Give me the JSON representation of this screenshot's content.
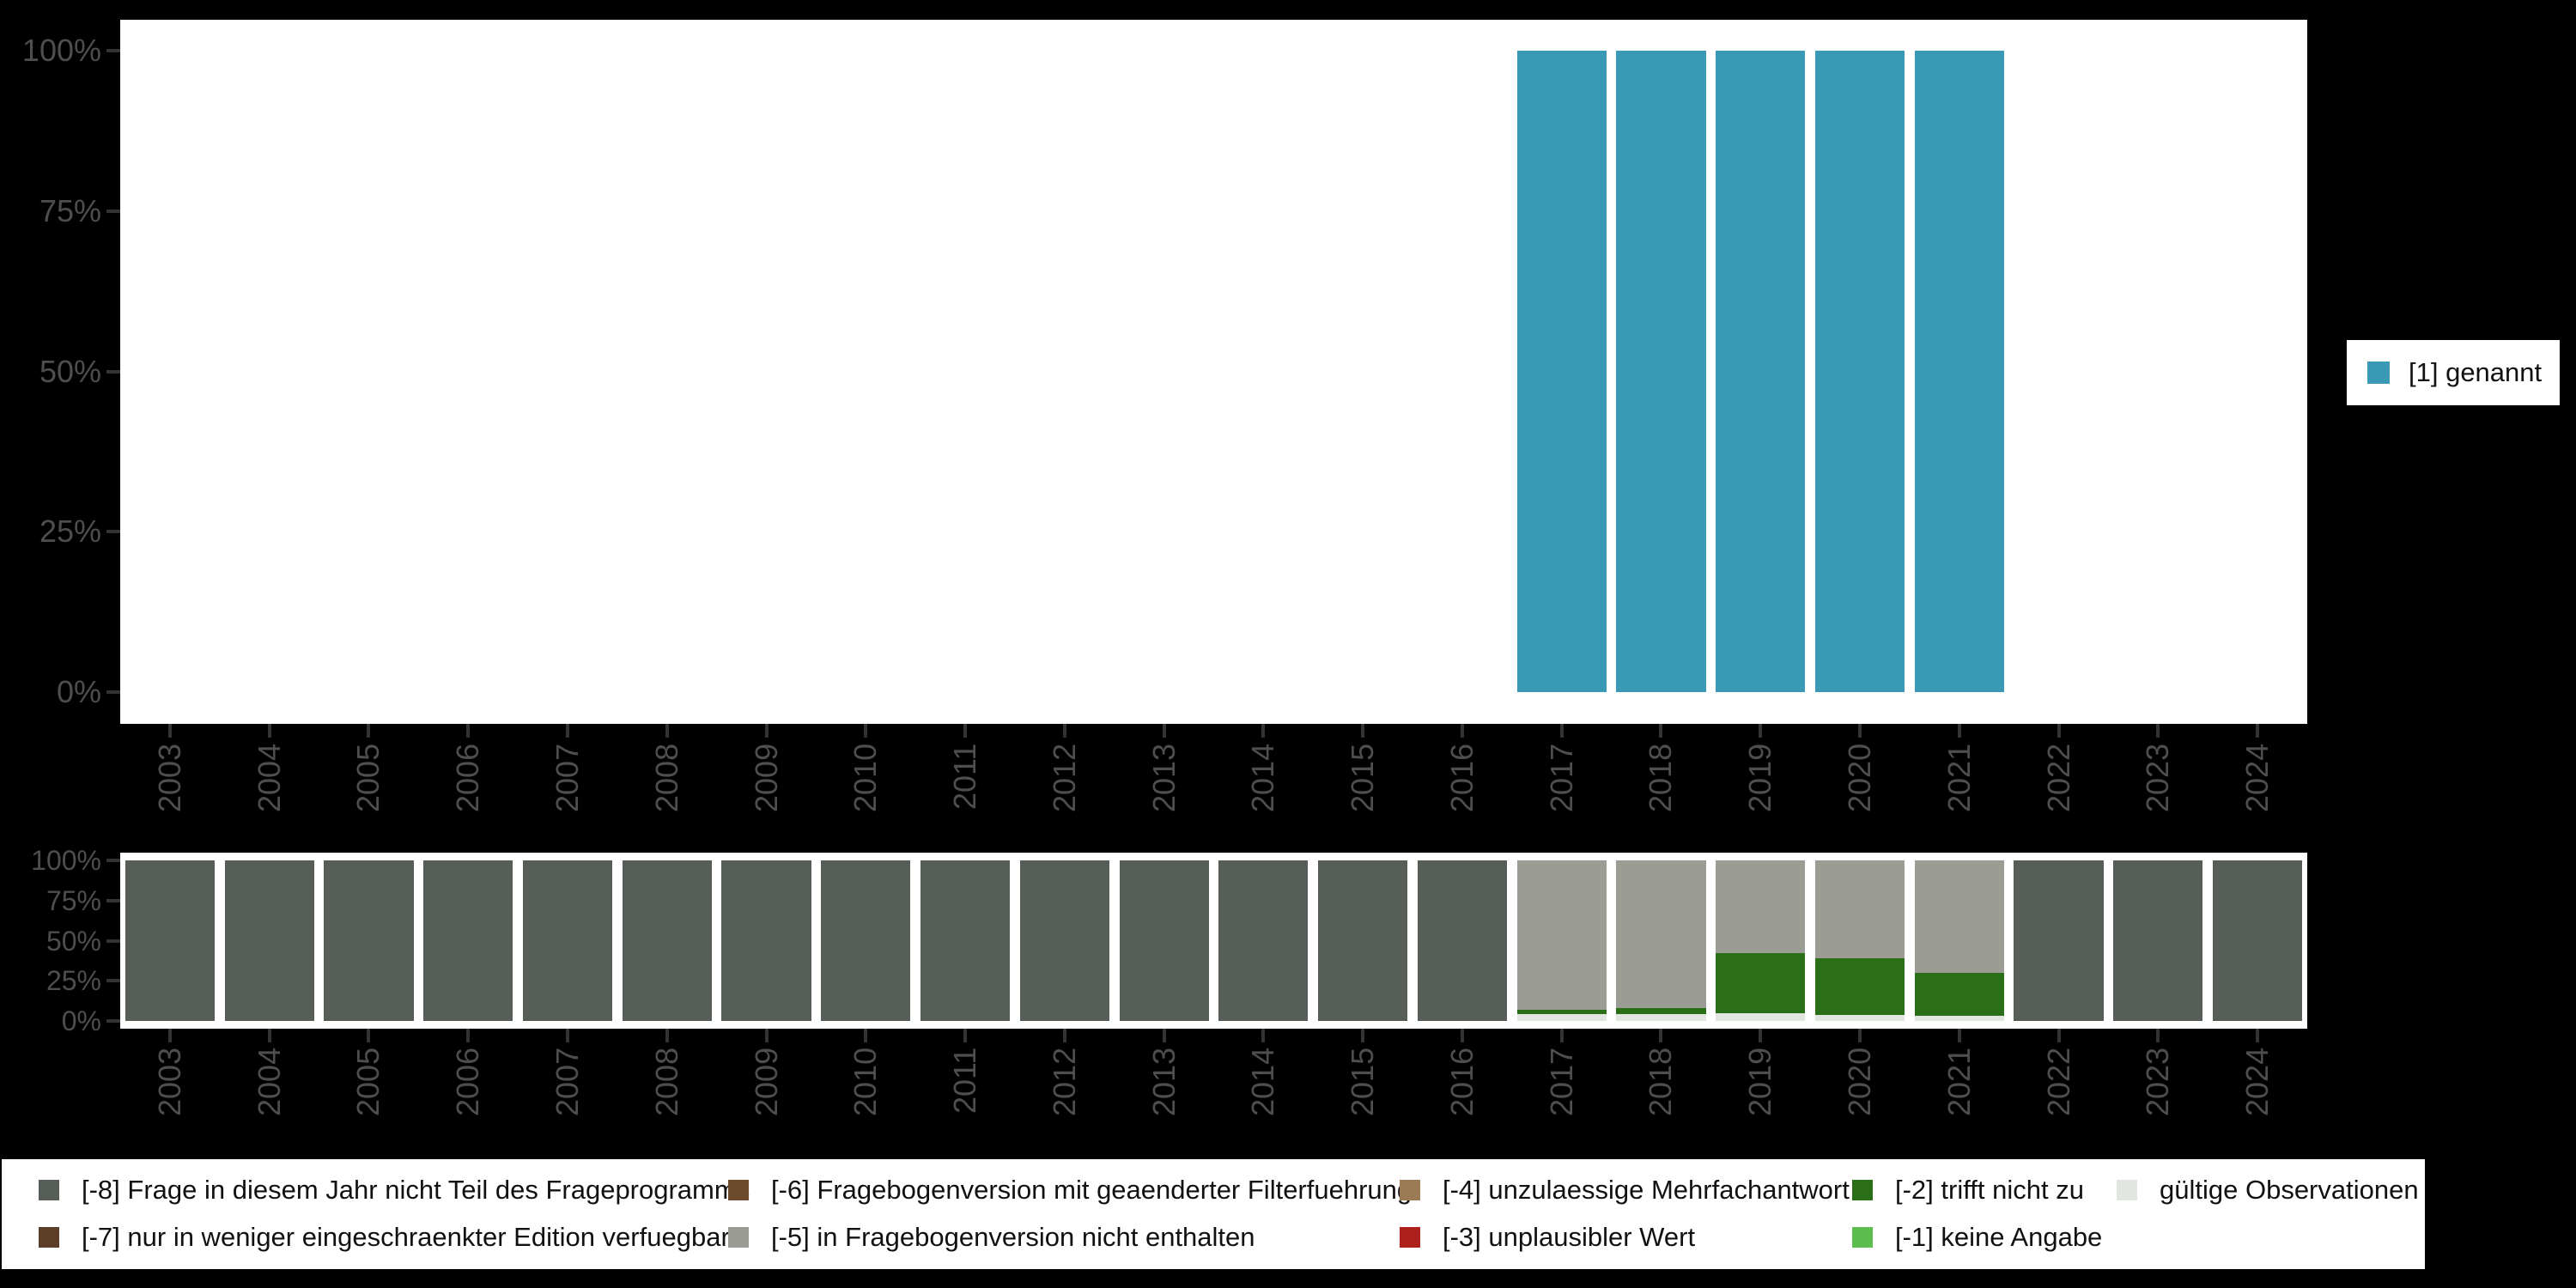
{
  "background": "#000000",
  "panel_background": "#ffffff",
  "axis": {
    "years": [
      "2003",
      "2004",
      "2005",
      "2006",
      "2007",
      "2008",
      "2009",
      "2010",
      "2011",
      "2012",
      "2013",
      "2014",
      "2015",
      "2016",
      "2017",
      "2018",
      "2019",
      "2020",
      "2021",
      "2022",
      "2023",
      "2024"
    ],
    "percent_ticks": {
      "labels": [
        "100%",
        "75%",
        "50%",
        "25%",
        "0%"
      ],
      "values": [
        100,
        75,
        50,
        25,
        0
      ]
    },
    "text_color": "#4e4e4e",
    "tick_color": "#333333"
  },
  "top_legend": {
    "label": "[1] genannt",
    "color": "#3a99b4"
  },
  "missing_legend": {
    "items": [
      {
        "label": "[-8] Frage in diesem Jahr nicht Teil des Frageprogramms",
        "color": "#575e57",
        "row": 0,
        "col": 0
      },
      {
        "label": "[-7] nur in weniger eingeschraenkter Edition verfuegbar",
        "color": "#5c3d28",
        "row": 1,
        "col": 0
      },
      {
        "label": "[-6] Fragebogenversion mit geaenderter Filterfuehrung",
        "color": "#6b4a2b",
        "row": 0,
        "col": 1
      },
      {
        "label": "[-5] in Fragebogenversion nicht enthalten",
        "color": "#9b9d95",
        "row": 1,
        "col": 1
      },
      {
        "label": "[-4] unzulaessige Mehrfachantwort",
        "color": "#9a7b55",
        "row": 0,
        "col": 2
      },
      {
        "label": "[-3] unplausibler Wert",
        "color": "#ae201c",
        "row": 1,
        "col": 2
      },
      {
        "label": "[-2] trifft nicht zu",
        "color": "#2a6e17",
        "row": 0,
        "col": 3
      },
      {
        "label": "[-1] keine Angabe",
        "color": "#5cbf4d",
        "row": 1,
        "col": 3
      },
      {
        "label": "gültige Observationen",
        "color": "#e2e6e0",
        "row": 0,
        "col": 4
      }
    ]
  },
  "chart_data": [
    {
      "id": "frequencies",
      "type": "bar",
      "stacked": false,
      "title": "",
      "categories": [
        "2003",
        "2004",
        "2005",
        "2006",
        "2007",
        "2008",
        "2009",
        "2010",
        "2011",
        "2012",
        "2013",
        "2014",
        "2015",
        "2016",
        "2017",
        "2018",
        "2019",
        "2020",
        "2021",
        "2022",
        "2023",
        "2024"
      ],
      "series": [
        {
          "name": "[1] genannt",
          "color": "#3a99b4",
          "values": [
            null,
            null,
            null,
            null,
            null,
            null,
            null,
            null,
            null,
            null,
            null,
            null,
            null,
            null,
            100,
            100,
            100,
            100,
            100,
            null,
            null,
            null
          ]
        }
      ],
      "xlabel": "",
      "ylabel": "",
      "ylim": [
        0,
        100
      ],
      "ytick_labels": [
        "100%",
        "75%",
        "50%",
        "25%",
        "0%"
      ],
      "grid": false,
      "legend_position": "right"
    },
    {
      "id": "missings",
      "type": "bar",
      "stacked": true,
      "title": "",
      "categories": [
        "2003",
        "2004",
        "2005",
        "2006",
        "2007",
        "2008",
        "2009",
        "2010",
        "2011",
        "2012",
        "2013",
        "2014",
        "2015",
        "2016",
        "2017",
        "2018",
        "2019",
        "2020",
        "2021",
        "2022",
        "2023",
        "2024"
      ],
      "series": [
        {
          "name": "gültige Observationen",
          "color": "#e2e6e0",
          "values": [
            0,
            0,
            0,
            0,
            0,
            0,
            0,
            0,
            0,
            0,
            0,
            0,
            0,
            0,
            4.5,
            4.5,
            5,
            4,
            3,
            0,
            0,
            0
          ]
        },
        {
          "name": "[-2] trifft nicht zu",
          "color": "#2a6e17",
          "values": [
            0,
            0,
            0,
            0,
            0,
            0,
            0,
            0,
            0,
            0,
            0,
            0,
            0,
            0,
            2.5,
            3.5,
            37,
            35,
            27,
            0,
            0,
            0
          ]
        },
        {
          "name": "[-5] in Fragebogenversion nicht enthalten",
          "color": "#9b9d95",
          "values": [
            0,
            0,
            0,
            0,
            0,
            0,
            0,
            0,
            0,
            0,
            0,
            0,
            0,
            0,
            93,
            92,
            58,
            61,
            70,
            0,
            0,
            0
          ]
        },
        {
          "name": "[-8] Frage in diesem Jahr nicht Teil des Frageprogramms",
          "color": "#575e57",
          "values": [
            100,
            100,
            100,
            100,
            100,
            100,
            100,
            100,
            100,
            100,
            100,
            100,
            100,
            100,
            0,
            0,
            0,
            0,
            0,
            100,
            100,
            100
          ]
        }
      ],
      "xlabel": "",
      "ylabel": "",
      "ylim": [
        0,
        100
      ],
      "ytick_labels": [
        "100%",
        "75%",
        "50%",
        "25%",
        "0%"
      ],
      "grid": false,
      "legend_position": "bottom"
    }
  ]
}
